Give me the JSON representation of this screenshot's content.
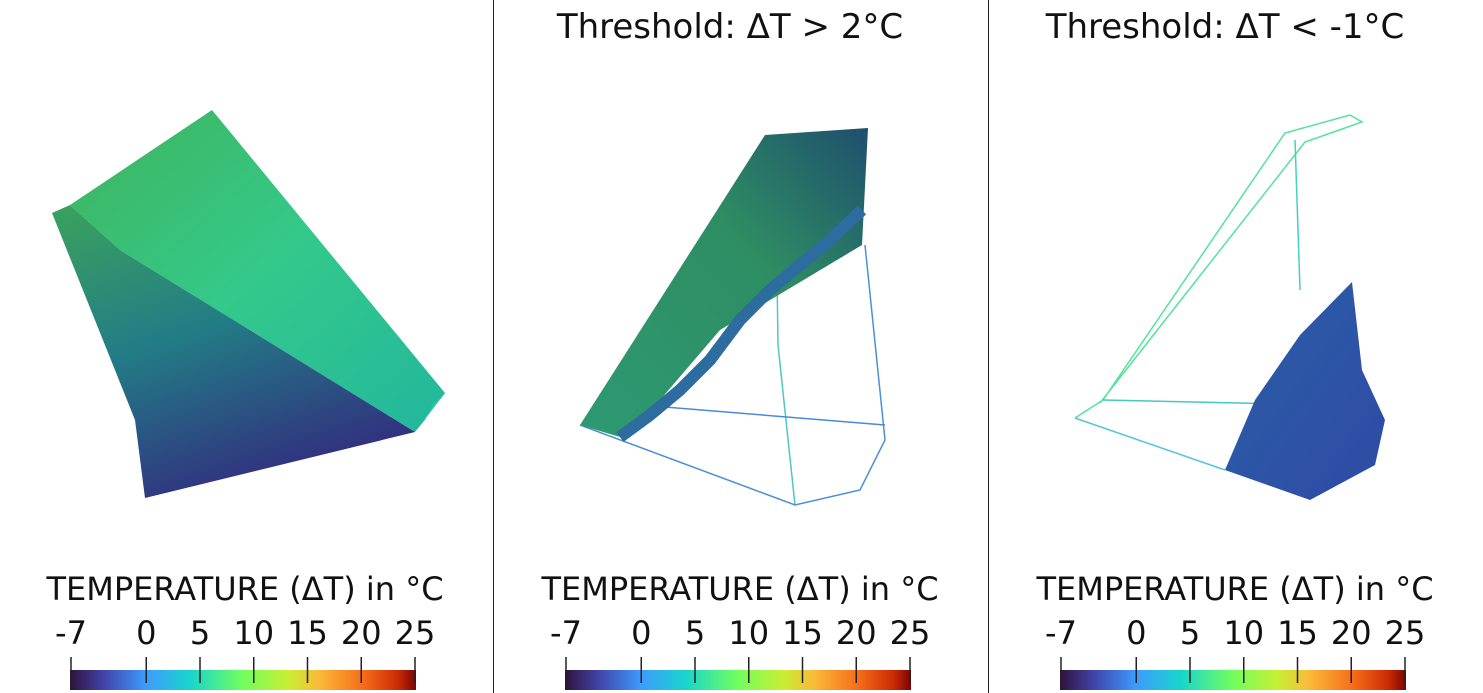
{
  "panels": [
    {
      "colorbar": {
        "title": "TEMPERATURE (ΔT) in °C",
        "ticks": [
          -7,
          0,
          5,
          10,
          15,
          20,
          25
        ]
      }
    },
    {
      "title": "Threshold: ΔT > 2°C",
      "colorbar": {
        "title": "TEMPERATURE (ΔT) in °C",
        "ticks": [
          -7,
          0,
          5,
          10,
          15,
          20,
          25
        ]
      }
    },
    {
      "title": "Threshold: ΔT < -1°C",
      "colorbar": {
        "title": "TEMPERATURE (ΔT) in °C",
        "ticks": [
          -7,
          0,
          5,
          10,
          15,
          20,
          25
        ]
      }
    }
  ]
}
